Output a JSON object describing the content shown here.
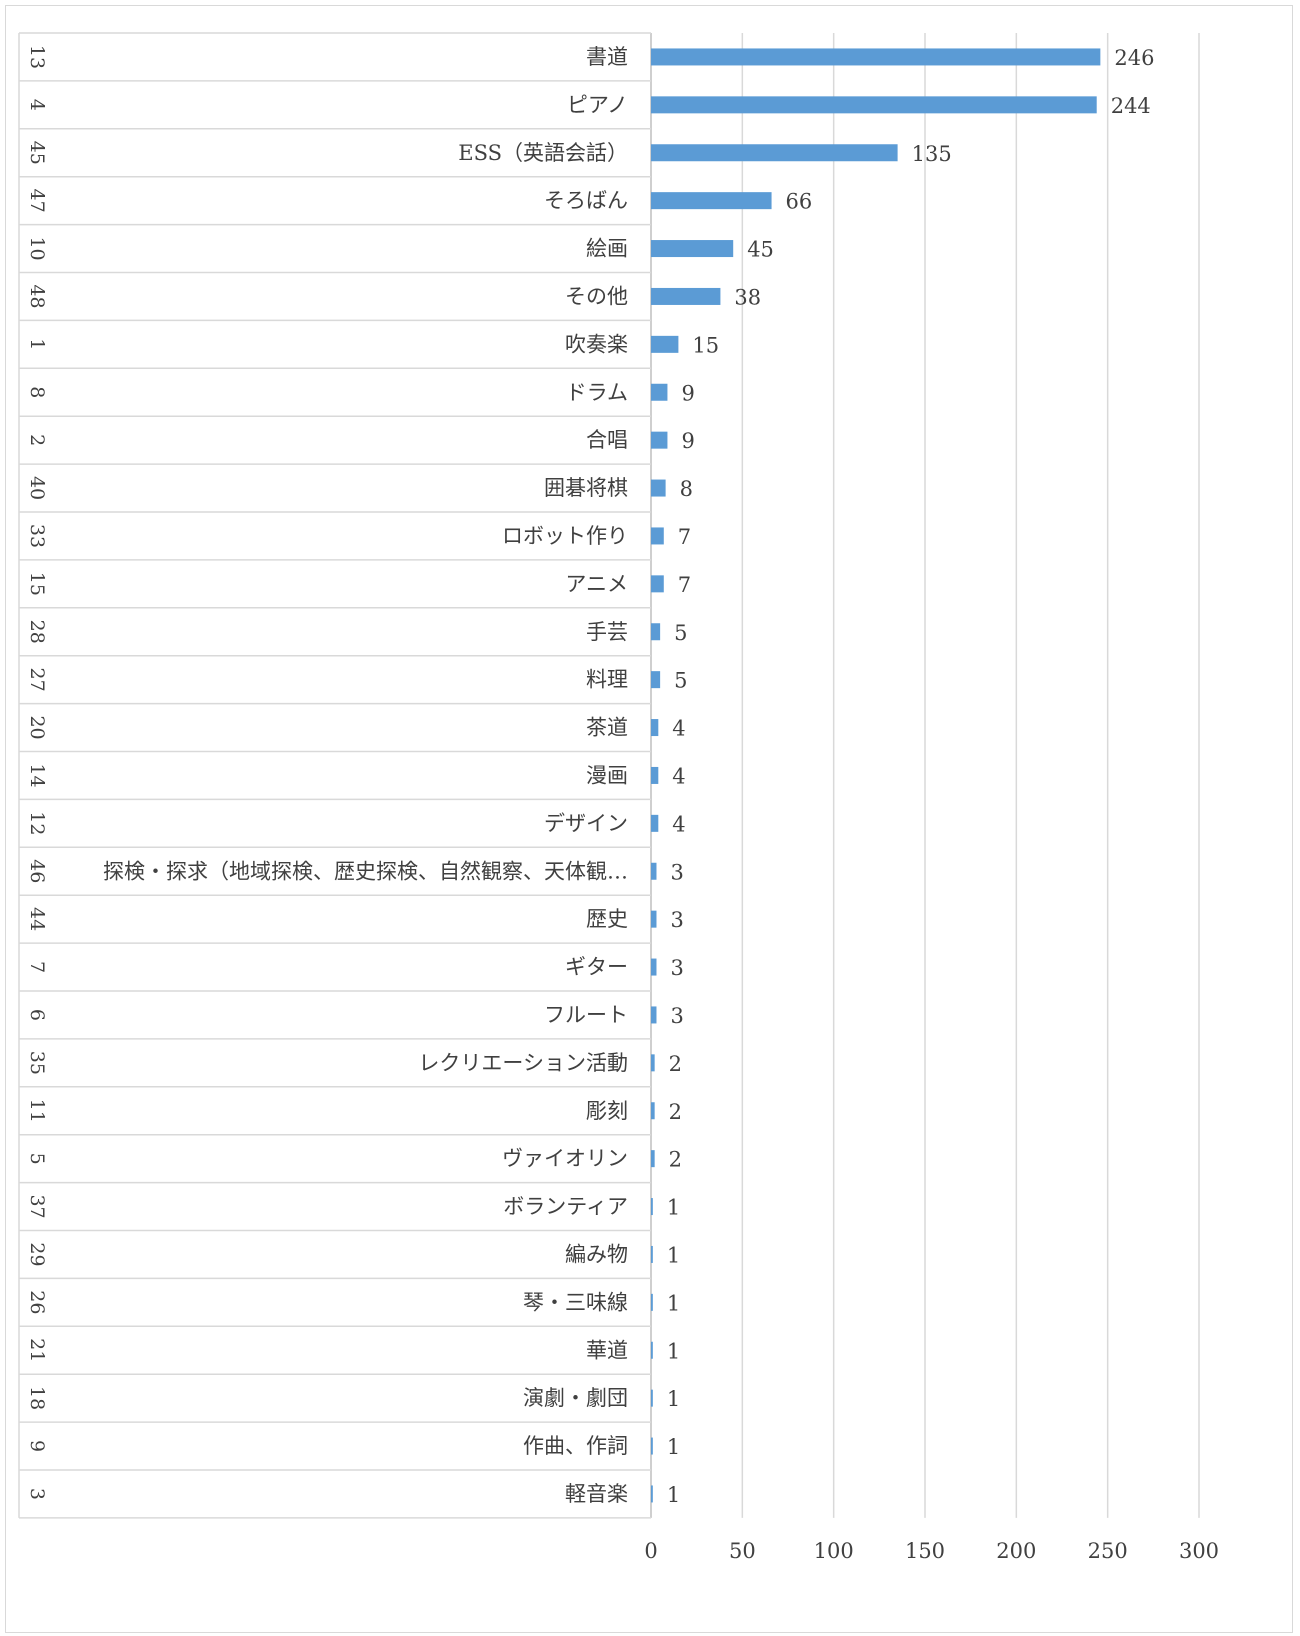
{
  "chart_data": {
    "type": "bar",
    "orientation": "horizontal",
    "title": "",
    "xlabel": "",
    "ylabel": "",
    "xlim": [
      0,
      300
    ],
    "x_ticks": [
      0,
      50,
      100,
      150,
      200,
      250,
      300
    ],
    "grid": true,
    "legend": "none",
    "bar_color": "#5b9bd5",
    "grid_color": "#d9d9d9",
    "row_line_color": "#d9d9d9",
    "text_color": "#404040",
    "categories": [
      {
        "code": "13",
        "label": "書道",
        "value": 246
      },
      {
        "code": "4",
        "label": "ピアノ",
        "value": 244
      },
      {
        "code": "45",
        "label": "ESS（英語会話）",
        "value": 135
      },
      {
        "code": "47",
        "label": "そろばん",
        "value": 66
      },
      {
        "code": "10",
        "label": "絵画",
        "value": 45
      },
      {
        "code": "48",
        "label": "その他",
        "value": 38
      },
      {
        "code": "1",
        "label": "吹奏楽",
        "value": 15
      },
      {
        "code": "8",
        "label": "ドラム",
        "value": 9
      },
      {
        "code": "2",
        "label": "合唱",
        "value": 9
      },
      {
        "code": "40",
        "label": "囲碁将棋",
        "value": 8
      },
      {
        "code": "33",
        "label": "ロボット作り",
        "value": 7
      },
      {
        "code": "15",
        "label": "アニメ",
        "value": 7
      },
      {
        "code": "28",
        "label": "手芸",
        "value": 5
      },
      {
        "code": "27",
        "label": "料理",
        "value": 5
      },
      {
        "code": "20",
        "label": "茶道",
        "value": 4
      },
      {
        "code": "14",
        "label": "漫画",
        "value": 4
      },
      {
        "code": "12",
        "label": "デザイン",
        "value": 4
      },
      {
        "code": "46",
        "label": "探検・探求（地域探検、歴史探検、自然観察、天体観…",
        "value": 3
      },
      {
        "code": "44",
        "label": "歴史",
        "value": 3
      },
      {
        "code": "7",
        "label": "ギター",
        "value": 3
      },
      {
        "code": "6",
        "label": "フルート",
        "value": 3
      },
      {
        "code": "35",
        "label": "レクリエーション活動",
        "value": 2
      },
      {
        "code": "11",
        "label": "彫刻",
        "value": 2
      },
      {
        "code": "5",
        "label": "ヴァイオリン",
        "value": 2
      },
      {
        "code": "37",
        "label": "ボランティア",
        "value": 1
      },
      {
        "code": "29",
        "label": "編み物",
        "value": 1
      },
      {
        "code": "26",
        "label": "琴・三味線",
        "value": 1
      },
      {
        "code": "21",
        "label": "華道",
        "value": 1
      },
      {
        "code": "18",
        "label": "演劇・劇団",
        "value": 1
      },
      {
        "code": "9",
        "label": "作曲、作詞",
        "value": 1
      },
      {
        "code": "3",
        "label": "軽音楽",
        "value": 1
      }
    ]
  }
}
